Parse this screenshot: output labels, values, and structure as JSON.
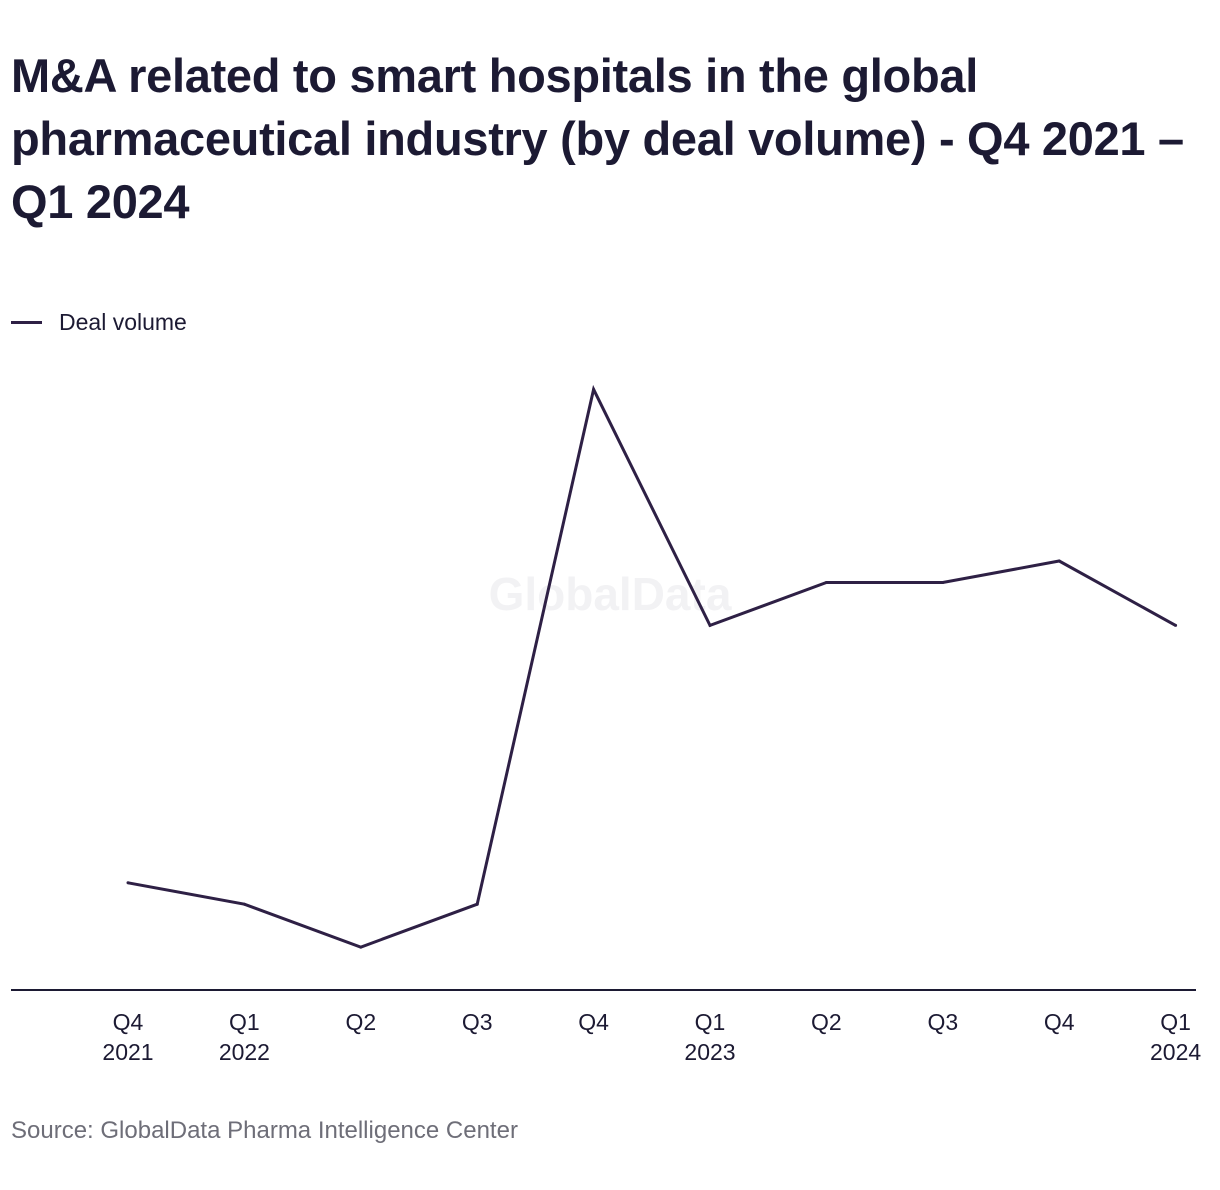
{
  "chart_data": {
    "type": "line",
    "title": "M&A related to smart hospitals in the global pharmaceutical industry (by deal volume) - Q4 2021 – Q1 2024",
    "categories": [
      [
        "Q4",
        "2021"
      ],
      [
        "Q1",
        "2022"
      ],
      [
        "Q2"
      ],
      [
        "Q3"
      ],
      [
        "Q4"
      ],
      [
        "Q1",
        "2023"
      ],
      [
        "Q2"
      ],
      [
        "Q3"
      ],
      [
        "Q4"
      ],
      [
        "Q1",
        "2024"
      ]
    ],
    "series": [
      {
        "name": "Deal volume",
        "color": "#2e2045",
        "values": [
          5,
          4,
          2,
          4,
          28,
          17,
          19,
          19,
          20,
          17
        ]
      }
    ],
    "ylim": [
      0,
      29
    ],
    "grid": false,
    "legend": "top-left",
    "watermark": "GlobalData",
    "source": "Source: GlobalData Pharma Intelligence Center"
  }
}
